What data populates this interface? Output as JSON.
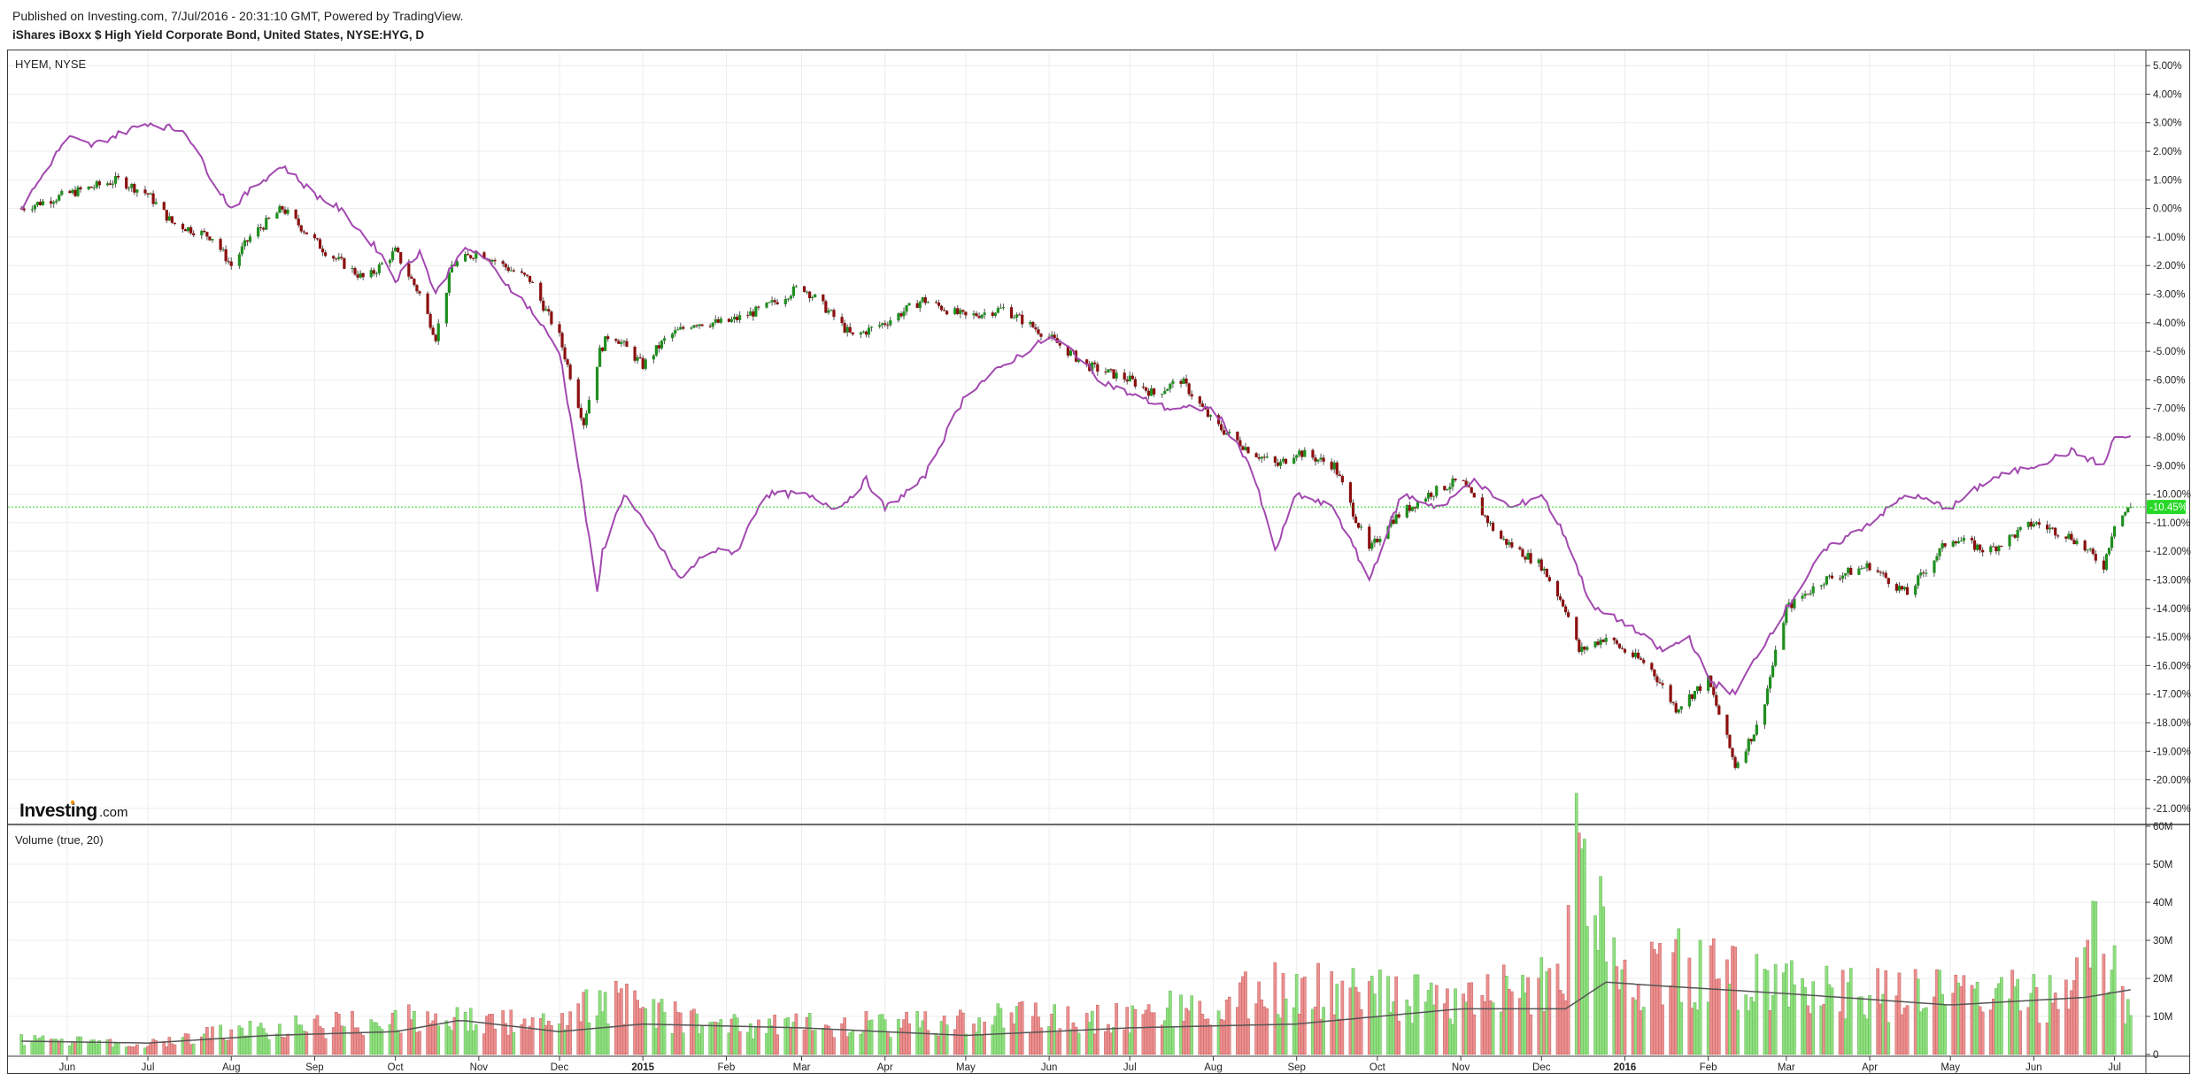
{
  "header": {
    "published": "Published on Investing.com, 7/Jul/2016 - 20:31:10 GMT, Powered by TradingView.",
    "symbol_title": "iShares iBoxx $ High Yield Corporate Bond, United States, NYSE:HYG, D"
  },
  "price_pane": {
    "label": "HYEM, NYSE",
    "current_value_label": "-10.45%",
    "logo_text": "Investing",
    "logo_suffix": ".com"
  },
  "volume_pane": {
    "label": "Volume (true, 20)"
  },
  "colors": {
    "up": "#1f8f1f",
    "down": "#8b0f0f",
    "compare_line": "#a349b0",
    "volume_up": "#8ee07e",
    "volume_down": "#ec8f8f",
    "volume_ma": "#555555",
    "current_line": "#27d827",
    "grid": "#ececec"
  },
  "chart_data": [
    {
      "type": "line",
      "title": "",
      "series": [
        {
          "name": "HYG",
          "style": "candlestick",
          "x": [
            "2014-05-15",
            "2014-06-01",
            "2014-06-20",
            "2014-07-01",
            "2014-07-10",
            "2014-07-25",
            "2014-08-01",
            "2014-08-08",
            "2014-08-20",
            "2014-09-05",
            "2014-09-20",
            "2014-10-01",
            "2014-10-10",
            "2014-10-16",
            "2014-10-22",
            "2014-11-01",
            "2014-11-10",
            "2014-11-20",
            "2014-12-01",
            "2014-12-10",
            "2014-12-16",
            "2014-12-20",
            "2015-01-01",
            "2015-01-10",
            "2015-01-20",
            "2015-02-01",
            "2015-02-15",
            "2015-03-01",
            "2015-03-10",
            "2015-03-20",
            "2015-04-01",
            "2015-04-15",
            "2015-05-01",
            "2015-05-15",
            "2015-06-01",
            "2015-06-15",
            "2015-07-01",
            "2015-07-10",
            "2015-07-20",
            "2015-08-01",
            "2015-08-15",
            "2015-08-25",
            "2015-09-01",
            "2015-09-15",
            "2015-09-28",
            "2015-10-05",
            "2015-10-20",
            "2015-11-01",
            "2015-11-15",
            "2015-12-01",
            "2015-12-10",
            "2015-12-15",
            "2015-12-25",
            "2016-01-01",
            "2016-01-10",
            "2016-01-20",
            "2016-02-01",
            "2016-02-11",
            "2016-02-20",
            "2016-03-01",
            "2016-03-15",
            "2016-04-01",
            "2016-04-15",
            "2016-05-01",
            "2016-05-15",
            "2016-06-01",
            "2016-06-15",
            "2016-06-27",
            "2016-07-01",
            "2016-07-07"
          ],
          "values": [
            0.0,
            0.5,
            1.0,
            0.5,
            -0.5,
            -1.0,
            -2.0,
            -1.0,
            0.0,
            -1.5,
            -2.5,
            -1.5,
            -3.0,
            -4.5,
            -2.0,
            -1.5,
            -2.0,
            -2.5,
            -4.5,
            -7.5,
            -5.0,
            -4.3,
            -5.5,
            -4.5,
            -4.0,
            -4.0,
            -3.5,
            -2.7,
            -3.5,
            -4.5,
            -4.0,
            -3.2,
            -3.8,
            -3.5,
            -4.5,
            -5.5,
            -6.0,
            -6.5,
            -6.0,
            -7.5,
            -8.5,
            -9.0,
            -8.5,
            -9.0,
            -12.0,
            -11.0,
            -10.0,
            -9.5,
            -11.5,
            -12.5,
            -14.0,
            -15.5,
            -15.0,
            -15.5,
            -16.0,
            -17.5,
            -16.5,
            -19.5,
            -18.0,
            -14.0,
            -13.0,
            -12.5,
            -13.5,
            -11.5,
            -12.0,
            -11.0,
            -11.5,
            -12.5,
            -11.0,
            -10.45
          ]
        },
        {
          "name": "HYEM",
          "style": "line",
          "x": [
            "2014-05-15",
            "2014-06-01",
            "2014-06-10",
            "2014-06-20",
            "2014-07-01",
            "2014-07-15",
            "2014-07-25",
            "2014-08-01",
            "2014-08-10",
            "2014-08-20",
            "2014-09-01",
            "2014-09-10",
            "2014-09-25",
            "2014-10-01",
            "2014-10-10",
            "2014-10-16",
            "2014-10-25",
            "2014-11-01",
            "2014-11-10",
            "2014-11-20",
            "2014-12-01",
            "2014-12-08",
            "2014-12-15",
            "2014-12-17",
            "2014-12-25",
            "2015-01-05",
            "2015-01-15",
            "2015-01-25",
            "2015-02-05",
            "2015-02-15",
            "2015-03-01",
            "2015-03-15",
            "2015-03-25",
            "2015-04-01",
            "2015-04-15",
            "2015-05-01",
            "2015-05-15",
            "2015-06-01",
            "2015-06-10",
            "2015-06-20",
            "2015-07-01",
            "2015-07-15",
            "2015-08-01",
            "2015-08-15",
            "2015-08-24",
            "2015-09-01",
            "2015-09-15",
            "2015-09-28",
            "2015-10-10",
            "2015-10-25",
            "2015-11-05",
            "2015-11-20",
            "2015-12-01",
            "2015-12-10",
            "2015-12-20",
            "2016-01-01",
            "2016-01-15",
            "2016-01-25",
            "2016-02-01",
            "2016-02-11",
            "2016-02-20",
            "2016-03-01",
            "2016-03-15",
            "2016-04-01",
            "2016-04-15",
            "2016-05-01",
            "2016-05-15",
            "2016-06-01",
            "2016-06-15",
            "2016-06-27",
            "2016-07-01",
            "2016-07-07"
          ],
          "values": [
            0.0,
            2.5,
            2.2,
            2.6,
            3.0,
            2.7,
            1.0,
            0.0,
            0.8,
            1.5,
            0.5,
            0.0,
            -1.5,
            -2.5,
            -1.5,
            -3.0,
            -1.5,
            -1.5,
            -2.5,
            -3.5,
            -5.0,
            -9.0,
            -13.5,
            -12.0,
            -10.0,
            -11.5,
            -13.0,
            -12.0,
            -12.0,
            -10.0,
            -10.0,
            -10.5,
            -9.5,
            -10.5,
            -9.5,
            -6.5,
            -5.5,
            -4.5,
            -5.0,
            -6.0,
            -6.5,
            -7.0,
            -7.0,
            -9.0,
            -12.0,
            -10.0,
            -10.5,
            -13.0,
            -10.0,
            -10.5,
            -9.5,
            -10.5,
            -10.0,
            -11.5,
            -14.0,
            -14.5,
            -15.5,
            -15.0,
            -16.5,
            -17.0,
            -15.5,
            -14.0,
            -12.0,
            -11.0,
            -10.0,
            -10.5,
            -9.5,
            -9.0,
            -8.5,
            -9.0,
            -8.0,
            -8.0
          ]
        }
      ],
      "ylabel": "",
      "ylim": [
        -21.5,
        5.5
      ],
      "y_ticks": [
        "5.00%",
        "4.00%",
        "3.00%",
        "2.00%",
        "1.00%",
        "0.00%",
        "-1.00%",
        "-2.00%",
        "-3.00%",
        "-4.00%",
        "-5.00%",
        "-6.00%",
        "-7.00%",
        "-8.00%",
        "-9.00%",
        "-10.00%",
        "-11.00%",
        "-12.00%",
        "-13.00%",
        "-14.00%",
        "-15.00%",
        "-16.00%",
        "-17.00%",
        "-18.00%",
        "-19.00%",
        "-20.00%",
        "-21.00%"
      ],
      "x_ticks": [
        "Jun",
        "Jul",
        "Aug",
        "Sep",
        "Oct",
        "Nov",
        "Dec",
        "2015",
        "Feb",
        "Mar",
        "Apr",
        "May",
        "Jun",
        "Jul",
        "Aug",
        "Sep",
        "Oct",
        "Nov",
        "Dec",
        "2016",
        "Feb",
        "Mar",
        "Apr",
        "May",
        "Jun",
        "Jul"
      ],
      "grid": true
    },
    {
      "type": "bar",
      "title": "",
      "series": [
        {
          "name": "Volume",
          "x": [
            "2014-05-15",
            "2014-07-01",
            "2014-08-01",
            "2014-10-01",
            "2014-10-20",
            "2014-12-01",
            "2014-12-15",
            "2015-02-01",
            "2015-03-01",
            "2015-05-15",
            "2015-07-01",
            "2015-08-25",
            "2015-10-01",
            "2015-11-01",
            "2015-12-01",
            "2015-12-10",
            "2015-12-14",
            "2015-12-20",
            "2016-01-01",
            "2016-01-20",
            "2016-02-15",
            "2016-03-15",
            "2016-04-15",
            "2016-05-15",
            "2016-06-15",
            "2016-06-24",
            "2016-06-28",
            "2016-07-07"
          ],
          "values": [
            4,
            3,
            6,
            10,
            10,
            8,
            15,
            8,
            8,
            10,
            10,
            18,
            16,
            14,
            20,
            26,
            55,
            45,
            22,
            24,
            20,
            18,
            16,
            16,
            16,
            31,
            26,
            13
          ]
        },
        {
          "name": "MA(20)",
          "x": [
            "2014-05-15",
            "2014-07-01",
            "2014-08-15",
            "2014-10-01",
            "2014-10-25",
            "2014-12-01",
            "2015-01-01",
            "2015-03-01",
            "2015-05-01",
            "2015-07-01",
            "2015-09-01",
            "2015-11-01",
            "2015-12-10",
            "2015-12-25",
            "2016-01-15",
            "2016-03-01",
            "2016-05-01",
            "2016-06-20",
            "2016-07-07"
          ],
          "values": [
            3.5,
            3,
            5,
            6,
            9,
            6,
            8,
            7,
            5,
            7,
            8,
            12,
            12,
            19,
            18,
            16,
            13,
            15,
            17
          ]
        }
      ],
      "ylim": [
        0,
        60
      ],
      "y_ticks": [
        "60M",
        "50M",
        "40M",
        "30M",
        "20M",
        "10M",
        "0"
      ],
      "x_ticks": [
        "Jun",
        "Jul",
        "Aug",
        "Sep",
        "Oct",
        "Nov",
        "Dec",
        "2015",
        "Feb",
        "Mar",
        "Apr",
        "May",
        "Jun",
        "Jul",
        "Aug",
        "Sep",
        "Oct",
        "Nov",
        "Dec",
        "2016",
        "Feb",
        "Mar",
        "Apr",
        "May",
        "Jun",
        "Jul"
      ],
      "grid": true
    }
  ]
}
